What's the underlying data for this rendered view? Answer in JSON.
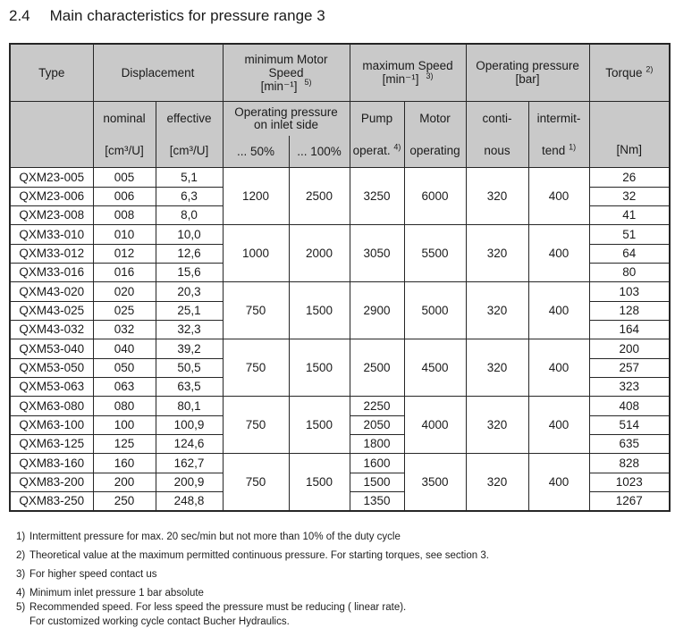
{
  "colors": {
    "header_bg": "#c9c9c9",
    "border": "#262626",
    "text": "#1b1b1b"
  },
  "title": {
    "number": "2.4",
    "text": "Main characteristics for pressure range 3"
  },
  "table": {
    "header": {
      "type": "Type",
      "displacement": "Displacement",
      "min_speed_l1": "minimum Motor",
      "min_speed_l2": "Speed",
      "min_speed_l3": "[min⁻¹]",
      "min_speed_note": "5)",
      "max_speed_l1": "maximum Speed",
      "max_speed_l2": "[min⁻¹]",
      "max_speed_note": "3)",
      "op_pressure_l1": "Operating pressure",
      "op_pressure_l2": "[bar]",
      "torque": "Torque",
      "torque_note": "2)",
      "nominal": "nominal",
      "nominal_unit": "[cm³/U]",
      "effective": "effective",
      "effective_unit": "[cm³/U]",
      "inlet_l1": "Operating pressure",
      "inlet_l2": "on inlet side",
      "pct50": "... 50%",
      "pct100": "... 100%",
      "pump_l1": "Pump",
      "pump_l2": "operat.",
      "pump_note": "4)",
      "motor_l1": "Motor",
      "motor_l2": "operating",
      "cont_l1": "conti-",
      "cont_l2": "nous",
      "interm_l1": "intermit-",
      "interm_l2": "tend",
      "interm_note": "1)",
      "nm": "[Nm]"
    },
    "groups": [
      {
        "min50": "1200",
        "min100": "2500",
        "pump": "3250",
        "motor": "6000",
        "continuous": "320",
        "intermittent": "400",
        "rows": [
          {
            "type": "QXM23-005",
            "nominal": "005",
            "effective": "5,1",
            "torque": "26"
          },
          {
            "type": "QXM23-006",
            "nominal": "006",
            "effective": "6,3",
            "torque": "32"
          },
          {
            "type": "QXM23-008",
            "nominal": "008",
            "effective": "8,0",
            "torque": "41"
          }
        ]
      },
      {
        "min50": "1000",
        "min100": "2000",
        "pump": "3050",
        "motor": "5500",
        "continuous": "320",
        "intermittent": "400",
        "rows": [
          {
            "type": "QXM33-010",
            "nominal": "010",
            "effective": "10,0",
            "torque": "51"
          },
          {
            "type": "QXM33-012",
            "nominal": "012",
            "effective": "12,6",
            "torque": "64"
          },
          {
            "type": "QXM33-016",
            "nominal": "016",
            "effective": "15,6",
            "torque": "80"
          }
        ]
      },
      {
        "min50": "750",
        "min100": "1500",
        "pump": "2900",
        "motor": "5000",
        "continuous": "320",
        "intermittent": "400",
        "rows": [
          {
            "type": "QXM43-020",
            "nominal": "020",
            "effective": "20,3",
            "torque": "103"
          },
          {
            "type": "QXM43-025",
            "nominal": "025",
            "effective": "25,1",
            "torque": "128"
          },
          {
            "type": "QXM43-032",
            "nominal": "032",
            "effective": "32,3",
            "torque": "164"
          }
        ]
      },
      {
        "min50": "750",
        "min100": "1500",
        "pump": "2500",
        "motor": "4500",
        "continuous": "320",
        "intermittent": "400",
        "rows": [
          {
            "type": "QXM53-040",
            "nominal": "040",
            "effective": "39,2",
            "torque": "200"
          },
          {
            "type": "QXM53-050",
            "nominal": "050",
            "effective": "50,5",
            "torque": "257"
          },
          {
            "type": "QXM53-063",
            "nominal": "063",
            "effective": "63,5",
            "torque": "323"
          }
        ]
      },
      {
        "min50": "750",
        "min100": "1500",
        "pump": [
          "2250",
          "2050",
          "1800"
        ],
        "motor": "4000",
        "continuous": "320",
        "intermittent": "400",
        "rows": [
          {
            "type": "QXM63-080",
            "nominal": "080",
            "effective": "80,1",
            "torque": "408"
          },
          {
            "type": "QXM63-100",
            "nominal": "100",
            "effective": "100,9",
            "torque": "514"
          },
          {
            "type": "QXM63-125",
            "nominal": "125",
            "effective": "124,6",
            "torque": "635"
          }
        ]
      },
      {
        "min50": "750",
        "min100": "1500",
        "pump": [
          "1600",
          "1500",
          "1350"
        ],
        "motor": "3500",
        "continuous": "320",
        "intermittent": "400",
        "rows": [
          {
            "type": "QXM83-160",
            "nominal": "160",
            "effective": "162,7",
            "torque": "828"
          },
          {
            "type": "QXM83-200",
            "nominal": "200",
            "effective": "200,9",
            "torque": "1023"
          },
          {
            "type": "QXM83-250",
            "nominal": "250",
            "effective": "248,8",
            "torque": "1267"
          }
        ]
      }
    ]
  },
  "footnotes": [
    {
      "marker": "1)",
      "text": "Intermittent pressure for max. 20 sec/min but not more than 10% of the duty cycle"
    },
    {
      "marker": "2)",
      "text": "Theoretical value at the maximum permitted continuous pressure. For starting torques, see section 3."
    },
    {
      "marker": "3)",
      "text": "For higher speed contact us"
    },
    {
      "marker": "4)",
      "text": "Minimum inlet pressure 1 bar absolute"
    },
    {
      "marker": "5)",
      "text": "Recommended speed. For less speed the pressure must be reducing ( linear rate)."
    },
    {
      "marker": "",
      "text": "For customized working cycle contact Bucher Hydraulics."
    }
  ]
}
